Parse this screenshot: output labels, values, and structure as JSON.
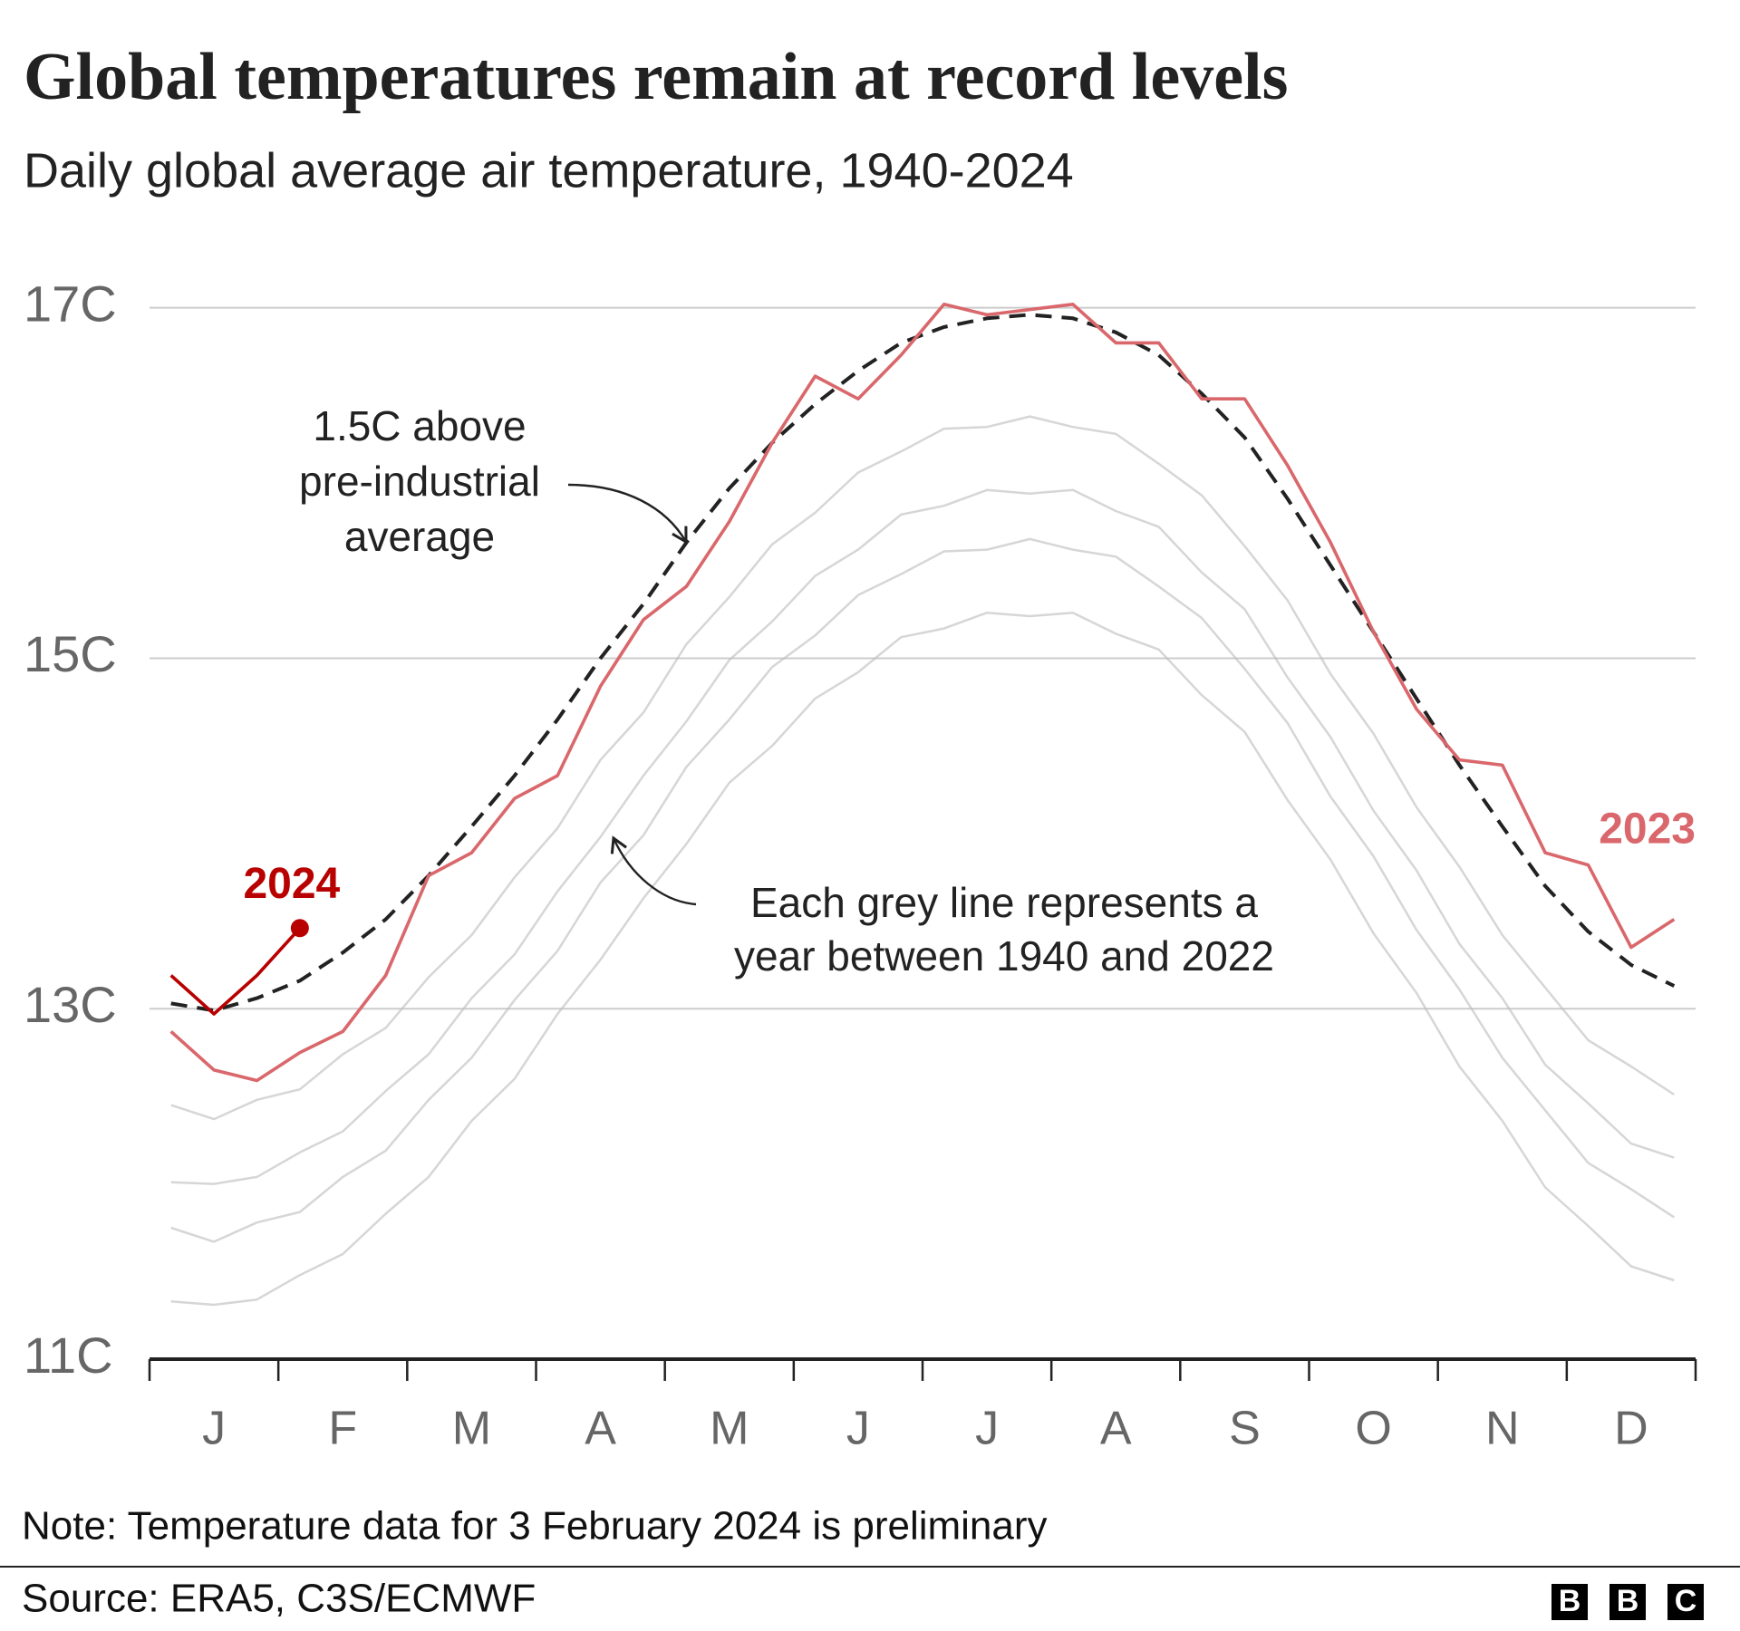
{
  "chart_data": {
    "type": "line",
    "title": "Global temperatures remain at record levels",
    "subtitle": "Daily global average air temperature, 1940-2024",
    "categories": [
      null,
      "J",
      null,
      null,
      "F",
      null,
      null,
      "M",
      null,
      null,
      "A",
      null,
      null,
      "M",
      null,
      null,
      "J",
      null,
      null,
      "J",
      null,
      null,
      "A",
      null,
      null,
      "S",
      null,
      null,
      "O",
      null,
      null,
      "N",
      null,
      null,
      "D",
      null
    ],
    "ylim": [
      11,
      17.2
    ],
    "yticks": [
      {
        "value": 11,
        "label": "11C"
      },
      {
        "value": 13,
        "label": "13C"
      },
      {
        "value": 15,
        "label": "15C"
      },
      {
        "value": 17,
        "label": "17C"
      }
    ],
    "grid": true,
    "series": [
      {
        "color": "#bbbbbb",
        "values": [
          11.33,
          11.31,
          11.34,
          11.48,
          11.6,
          11.83,
          12.04,
          12.36,
          12.6,
          12.97,
          13.28,
          13.63,
          13.94,
          14.29,
          14.5,
          14.77,
          14.92,
          15.12,
          15.17,
          15.26,
          15.24,
          15.26,
          15.14,
          15.05,
          14.79,
          14.58,
          14.19,
          13.85,
          13.43,
          13.09,
          12.67,
          12.36,
          11.98,
          11.76,
          11.53,
          11.45
        ]
      },
      {
        "color": "#bbbbbb",
        "values": [
          11.75,
          11.67,
          11.78,
          11.84,
          12.04,
          12.19,
          12.48,
          12.72,
          13.05,
          13.33,
          13.72,
          13.99,
          14.38,
          14.65,
          14.95,
          15.13,
          15.36,
          15.48,
          15.61,
          15.62,
          15.68,
          15.62,
          15.58,
          15.41,
          15.23,
          14.94,
          14.63,
          14.21,
          13.87,
          13.45,
          13.11,
          12.72,
          12.42,
          12.12,
          11.97,
          11.81
        ]
      },
      {
        "color": "#bbbbbb",
        "values": [
          12.01,
          12.0,
          12.04,
          12.18,
          12.3,
          12.53,
          12.74,
          13.06,
          13.31,
          13.67,
          13.98,
          14.33,
          14.64,
          14.99,
          15.21,
          15.47,
          15.62,
          15.82,
          15.87,
          15.96,
          15.94,
          15.96,
          15.84,
          15.75,
          15.49,
          15.28,
          14.89,
          14.55,
          14.13,
          13.79,
          13.37,
          13.06,
          12.68,
          12.46,
          12.23,
          12.15
        ]
      },
      {
        "color": "#bbbbbb",
        "values": [
          12.45,
          12.37,
          12.48,
          12.54,
          12.74,
          12.89,
          13.18,
          13.42,
          13.75,
          14.03,
          14.42,
          14.69,
          15.08,
          15.35,
          15.65,
          15.83,
          16.06,
          16.18,
          16.31,
          16.32,
          16.38,
          16.32,
          16.28,
          16.11,
          15.93,
          15.64,
          15.33,
          14.91,
          14.57,
          14.15,
          13.81,
          13.42,
          13.12,
          12.82,
          12.67,
          12.51
        ]
      },
      {
        "color": "#222222",
        "style": "dashed",
        "values": [
          13.03,
          12.99,
          13.06,
          13.16,
          13.32,
          13.51,
          13.76,
          14.04,
          14.33,
          14.65,
          15.0,
          15.31,
          15.66,
          15.97,
          16.23,
          16.45,
          16.64,
          16.8,
          16.89,
          16.94,
          16.96,
          16.94,
          16.86,
          16.73,
          16.51,
          16.26,
          15.91,
          15.53,
          15.15,
          14.77,
          14.39,
          14.04,
          13.7,
          13.44,
          13.25,
          13.13
        ]
      },
      {
        "name": "2023",
        "color": "#d9676b",
        "values": [
          12.87,
          12.65,
          12.59,
          12.75,
          12.87,
          13.19,
          13.76,
          13.89,
          14.2,
          14.33,
          14.84,
          15.22,
          15.41,
          15.78,
          16.23,
          16.61,
          16.48,
          16.73,
          17.02,
          16.96,
          16.99,
          17.02,
          16.8,
          16.8,
          16.48,
          16.48,
          16.1,
          15.66,
          15.15,
          14.71,
          14.42,
          14.39,
          13.89,
          13.82,
          13.35,
          13.51
        ]
      },
      {
        "name": "2024",
        "color": "#b80000",
        "values": [
          13.19,
          12.97,
          13.19,
          13.46,
          null,
          null,
          null,
          null,
          null,
          null,
          null,
          null,
          null,
          null,
          null,
          null,
          null,
          null,
          null,
          null,
          null,
          null,
          null,
          null,
          null,
          null,
          null,
          null,
          null,
          null,
          null,
          null,
          null,
          null,
          null,
          null
        ]
      }
    ],
    "annotations": [
      {
        "lines": [
          "1.5C above",
          "pre-industrial",
          "average"
        ]
      },
      {
        "lines": [
          "Each grey line represents a",
          "year between 1940 and 2022"
        ]
      }
    ],
    "note": "Note: Temperature data for 3 February 2024 is preliminary",
    "source": "Source: ERA5, C3S/ECMWF",
    "logo": [
      "B",
      "B",
      "C"
    ]
  }
}
